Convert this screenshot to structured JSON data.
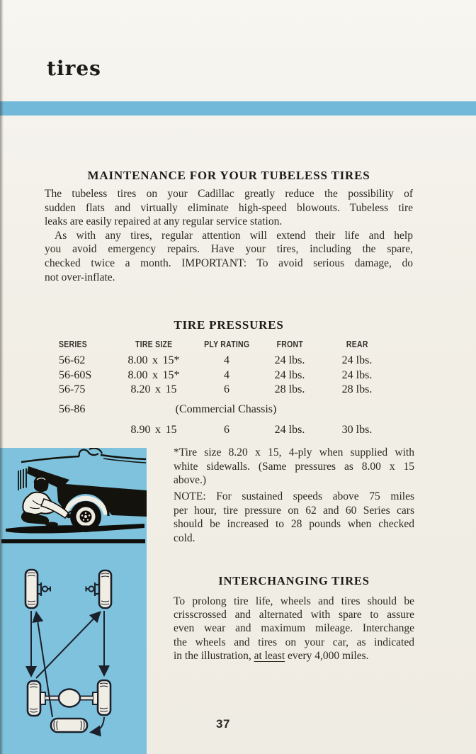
{
  "page": {
    "title": "tires",
    "number": "37"
  },
  "colors": {
    "page_bg": "#f1eee6",
    "accent_bar_blue": "#72b9d9",
    "panel_blue": "#7ec2dd",
    "ink": "#28261c"
  },
  "maintenance": {
    "heading": "MAINTENANCE FOR YOUR TUBELESS TIRES",
    "para1_lines": [
      "The tubeless tires on your Cadillac greatly reduce the possibility of",
      "sudden flats and virtually eliminate high-speed blowouts. Tubeless tire",
      "leaks are easily repaired at any regular service station."
    ],
    "para2_lines": [
      "As with any tires, regular attention will extend their life and help",
      "you avoid emergency repairs. Have your tires, including the spare,",
      "checked twice a month. IMPORTANT: To avoid serious damage, do",
      "not over-inflate."
    ]
  },
  "tire_pressures": {
    "heading": "TIRE PRESSURES",
    "columns": [
      "SERIES",
      "TIRE SIZE",
      "PLY RATING",
      "FRONT",
      "REAR"
    ],
    "rows": [
      {
        "series": "56-62",
        "tire_size": "8.00 x 15*",
        "ply_rating": "4",
        "front": "24 lbs.",
        "rear": "24 lbs."
      },
      {
        "series": "56-60S",
        "tire_size": "8.00 x 15*",
        "ply_rating": "4",
        "front": "24 lbs.",
        "rear": "24 lbs."
      },
      {
        "series": "56-75",
        "tire_size": "8.20 x 15",
        "ply_rating": "6",
        "front": "28 lbs.",
        "rear": "28 lbs."
      }
    ],
    "commercial": {
      "series": "56-86",
      "label": "(Commercial Chassis)"
    },
    "commercial_row": {
      "tire_size": "8.90 x 15",
      "ply_rating": "6",
      "front": "24 lbs.",
      "rear": "30 lbs."
    }
  },
  "footnote_lines": [
    "*Tire size 8.20 x 15, 4-ply when supplied with",
    "white sidewalls. (Same pressures as 8.00 x 15",
    "above.)"
  ],
  "note_lines": [
    "NOTE: For sustained speeds above 75 miles",
    "per hour, tire pressure on 62 and 60 Series cars",
    "should be increased to 28 pounds when checked",
    "cold."
  ],
  "interchanging": {
    "heading": "INTERCHANGING TIRES",
    "para_lines": [
      "To prolong tire life, wheels and tires should be",
      "crisscrossed and alternated with spare to assure",
      "even wear and maximum mileage. Interchange",
      "the wheels and tires on your car, as indicated"
    ],
    "last_line_pre": "in the illustration, ",
    "last_line_underlined": "at least",
    "last_line_post": " every 4,000 miles."
  }
}
